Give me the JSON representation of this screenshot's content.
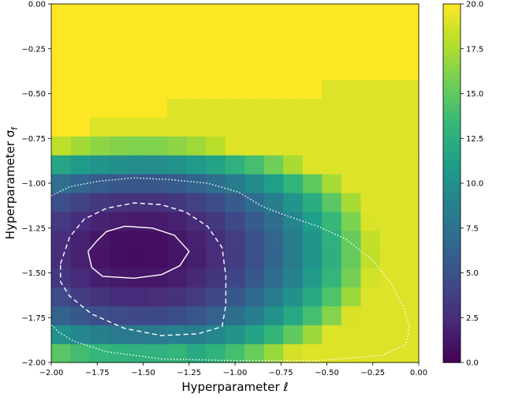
{
  "chart_data": {
    "type": "heatmap",
    "xlabel": "Hyperparameter ℓ",
    "ylabel": "Hyperparameter σ",
    "ylabel_subscript": "f",
    "xlim": [
      -2.0,
      0.0
    ],
    "ylim": [
      -2.0,
      0.0
    ],
    "x_ticks": [
      "−2.00",
      "−1.75",
      "−1.50",
      "−1.25",
      "−1.00",
      "−0.75",
      "−0.50",
      "−0.25",
      "0.00"
    ],
    "y_ticks": [
      "0.00",
      "−0.25",
      "−0.50",
      "−0.75",
      "−1.00",
      "−1.25",
      "−1.50",
      "−1.75",
      "−2.00"
    ],
    "colorbar": {
      "min": 0,
      "max": 20,
      "ticks": [
        "0.0",
        "2.5",
        "5.0",
        "7.5",
        "10.0",
        "12.5",
        "15.0",
        "17.5",
        "20.0"
      ],
      "colormap": "viridis"
    },
    "grid_size": [
      19,
      19
    ],
    "contours": [
      {
        "style": "solid",
        "points": [
          [
            -1.8,
            -1.38
          ],
          [
            -1.75,
            -1.32
          ],
          [
            -1.7,
            -1.27
          ],
          [
            -1.6,
            -1.24
          ],
          [
            -1.45,
            -1.25
          ],
          [
            -1.33,
            -1.29
          ],
          [
            -1.25,
            -1.38
          ],
          [
            -1.3,
            -1.46
          ],
          [
            -1.4,
            -1.51
          ],
          [
            -1.55,
            -1.53
          ],
          [
            -1.72,
            -1.52
          ],
          [
            -1.78,
            -1.47
          ],
          [
            -1.8,
            -1.38
          ]
        ]
      },
      {
        "style": "dashed",
        "points": [
          [
            -1.95,
            -1.45
          ],
          [
            -1.9,
            -1.3
          ],
          [
            -1.82,
            -1.2
          ],
          [
            -1.7,
            -1.14
          ],
          [
            -1.55,
            -1.11
          ],
          [
            -1.4,
            -1.12
          ],
          [
            -1.27,
            -1.16
          ],
          [
            -1.15,
            -1.24
          ],
          [
            -1.07,
            -1.36
          ],
          [
            -1.05,
            -1.52
          ],
          [
            -1.05,
            -1.68
          ],
          [
            -1.07,
            -1.8
          ],
          [
            -1.2,
            -1.84
          ],
          [
            -1.4,
            -1.85
          ],
          [
            -1.6,
            -1.81
          ],
          [
            -1.78,
            -1.73
          ],
          [
            -1.9,
            -1.63
          ],
          [
            -1.95,
            -1.55
          ],
          [
            -1.95,
            -1.45
          ]
        ]
      },
      {
        "style": "dotted",
        "points": [
          [
            -2.0,
            -1.07
          ],
          [
            -1.9,
            -1.02
          ],
          [
            -1.75,
            -0.99
          ],
          [
            -1.55,
            -0.97
          ],
          [
            -1.35,
            -0.98
          ],
          [
            -1.15,
            -1.0
          ],
          [
            -0.98,
            -1.05
          ],
          [
            -0.85,
            -1.13
          ],
          [
            -0.75,
            -1.17
          ],
          [
            -0.55,
            -1.24
          ],
          [
            -0.4,
            -1.31
          ],
          [
            -0.25,
            -1.43
          ],
          [
            -0.15,
            -1.56
          ],
          [
            -0.08,
            -1.7
          ],
          [
            -0.05,
            -1.8
          ],
          [
            -0.07,
            -1.9
          ],
          [
            -0.2,
            -1.96
          ],
          [
            -0.55,
            -1.99
          ],
          [
            -1.0,
            -1.99
          ],
          [
            -1.4,
            -1.98
          ],
          [
            -1.7,
            -1.94
          ],
          [
            -1.88,
            -1.88
          ],
          [
            -1.96,
            -1.83
          ],
          [
            -2.0,
            -1.79
          ]
        ]
      }
    ]
  }
}
